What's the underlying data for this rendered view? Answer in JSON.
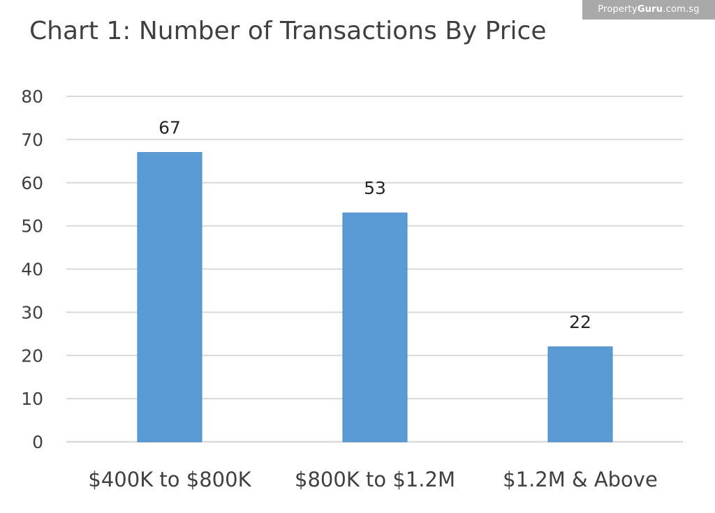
{
  "watermark": {
    "brand_prefix": "Property",
    "brand_bold": "Guru",
    "brand_suffix": ".com.sg"
  },
  "colors": {
    "bar": "#5b9bd5",
    "bar_stroke": "#4a89c4",
    "gridline": "#d9d9d9",
    "axis_text": "#404040",
    "watermark_bg": "#a9a9a9"
  },
  "chart_data": {
    "type": "bar",
    "title": "Chart 1: Number of Transactions By Price",
    "categories": [
      "$400K to $800K",
      "$800K to $1.2M",
      "$1.2M & Above"
    ],
    "values": [
      67,
      53,
      22
    ],
    "data_labels": [
      "67",
      "53",
      "22"
    ],
    "ylim": [
      0,
      80
    ],
    "yticks": [
      0,
      10,
      20,
      30,
      40,
      50,
      60,
      70,
      80
    ],
    "xlabel": "",
    "ylabel": "",
    "grid": true,
    "legend": "none"
  }
}
